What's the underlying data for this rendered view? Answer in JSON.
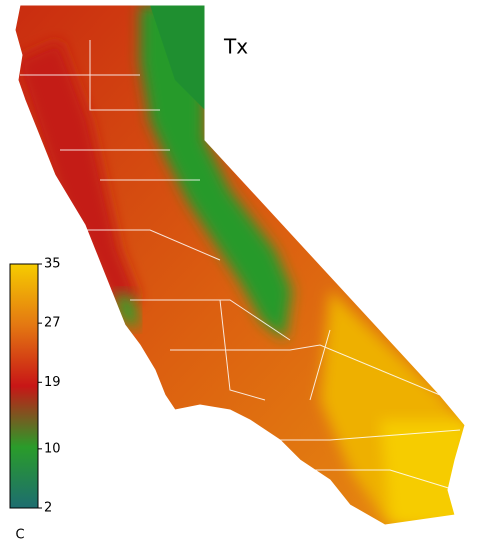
{
  "map": {
    "title": "Tx"
  },
  "colorbar": {
    "clim": [
      2,
      35
    ],
    "ticks": [
      2,
      10,
      19,
      27,
      35
    ],
    "unit": "C",
    "colormap": [
      "#1d6d70",
      "#2a9c2a",
      "#c81616",
      "#e47812",
      "#f6cc00"
    ]
  }
}
